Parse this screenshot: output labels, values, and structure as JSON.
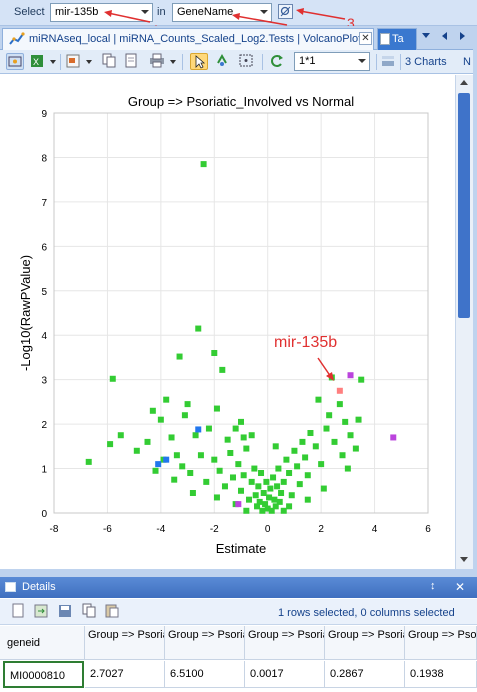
{
  "select_bar": {
    "select_label": "Select",
    "select_value": "mir-135b",
    "in_label": "in",
    "in_value": "GeneName",
    "annotations": [
      "1",
      "2",
      "3"
    ]
  },
  "tabs": {
    "active_tab": "miRNAseq_local | miRNA_Counts_Scaled_Log2.Tests | VolcanoPlot",
    "second_tab": "Ta"
  },
  "toolbar": {
    "scale_value": "1*1",
    "charts_label": "3 Charts",
    "overflow_label": "N"
  },
  "colors": {
    "point_default": "#33cc33",
    "point_selected": "#ff7f7f",
    "point_purple": "#bb44dd",
    "point_blue": "#2277ee",
    "annotation_red": "#e03030"
  },
  "chart_data": {
    "type": "scatter",
    "title": "Group => Psoriatic_Involved vs Normal",
    "xlabel": "Estimate",
    "ylabel": "-Log10(RawPValue)",
    "xlim": [
      -8,
      6
    ],
    "ylim": [
      0,
      9
    ],
    "xticks": [
      "-8",
      "-6",
      "-4",
      "-2",
      "0",
      "2",
      "4",
      "6"
    ],
    "yticks": [
      "0",
      "1",
      "2",
      "3",
      "4",
      "5",
      "6",
      "7",
      "8",
      "9"
    ],
    "grid": true,
    "annotation_label": "mir-135b",
    "series": [
      {
        "color_key": "point_default",
        "points": [
          [
            -2.4,
            7.85
          ],
          [
            -2.6,
            4.15
          ],
          [
            -3.3,
            3.52
          ],
          [
            -5.8,
            3.02
          ],
          [
            -2.0,
            3.6
          ],
          [
            -1.7,
            3.22
          ],
          [
            -3.8,
            2.55
          ],
          [
            -3.0,
            2.45
          ],
          [
            -4.3,
            2.3
          ],
          [
            -4.0,
            2.1
          ],
          [
            -3.1,
            2.2
          ],
          [
            -1.9,
            2.35
          ],
          [
            -5.5,
            1.75
          ],
          [
            -5.9,
            1.55
          ],
          [
            -6.7,
            1.15
          ],
          [
            -4.9,
            1.4
          ],
          [
            -4.5,
            1.6
          ],
          [
            -3.6,
            1.7
          ],
          [
            -3.4,
            1.3
          ],
          [
            -2.7,
            1.75
          ],
          [
            -2.2,
            1.9
          ],
          [
            -1.5,
            1.65
          ],
          [
            -1.2,
            1.9
          ],
          [
            -0.9,
            1.7
          ],
          [
            -3.9,
            1.2
          ],
          [
            -3.2,
            1.05
          ],
          [
            -2.9,
            0.9
          ],
          [
            -2.5,
            1.3
          ],
          [
            -2.3,
            0.7
          ],
          [
            -2.0,
            1.2
          ],
          [
            -1.8,
            0.95
          ],
          [
            -1.6,
            0.6
          ],
          [
            -1.4,
            1.35
          ],
          [
            -1.3,
            0.8
          ],
          [
            -1.1,
            1.1
          ],
          [
            -1.0,
            0.5
          ],
          [
            -0.9,
            0.85
          ],
          [
            -0.8,
            1.45
          ],
          [
            -0.7,
            0.3
          ],
          [
            -0.6,
            0.7
          ],
          [
            -0.5,
            1.0
          ],
          [
            -0.45,
            0.4
          ],
          [
            -0.4,
            0.15
          ],
          [
            -0.35,
            0.6
          ],
          [
            -0.3,
            0.25
          ],
          [
            -0.25,
            0.9
          ],
          [
            -0.2,
            0.05
          ],
          [
            -0.15,
            0.45
          ],
          [
            -0.1,
            0.2
          ],
          [
            -0.05,
            0.7
          ],
          [
            0.0,
            0.1
          ],
          [
            0.05,
            0.35
          ],
          [
            0.1,
            0.55
          ],
          [
            0.15,
            0.05
          ],
          [
            0.2,
            0.8
          ],
          [
            0.25,
            0.3
          ],
          [
            0.3,
            0.15
          ],
          [
            0.35,
            0.6
          ],
          [
            0.4,
            1.0
          ],
          [
            0.45,
            0.25
          ],
          [
            0.5,
            0.45
          ],
          [
            0.6,
            0.7
          ],
          [
            0.7,
            1.2
          ],
          [
            0.8,
            0.9
          ],
          [
            0.9,
            0.4
          ],
          [
            1.0,
            1.4
          ],
          [
            1.1,
            1.05
          ],
          [
            1.2,
            0.65
          ],
          [
            1.3,
            1.6
          ],
          [
            1.4,
            1.25
          ],
          [
            1.5,
            0.85
          ],
          [
            1.6,
            1.8
          ],
          [
            1.8,
            1.5
          ],
          [
            2.0,
            1.1
          ],
          [
            2.2,
            1.9
          ],
          [
            2.3,
            2.2
          ],
          [
            2.5,
            1.6
          ],
          [
            2.7,
            2.45
          ],
          [
            2.8,
            1.3
          ],
          [
            2.9,
            2.05
          ],
          [
            3.1,
            1.75
          ],
          [
            3.0,
            1.0
          ],
          [
            3.3,
            1.45
          ],
          [
            3.4,
            2.1
          ],
          [
            3.5,
            3.0
          ],
          [
            2.4,
            3.05
          ],
          [
            -1.0,
            2.05
          ],
          [
            -0.6,
            1.75
          ],
          [
            0.3,
            1.5
          ],
          [
            1.9,
            2.55
          ],
          [
            -3.5,
            0.75
          ],
          [
            -4.2,
            0.95
          ],
          [
            -2.8,
            0.45
          ],
          [
            -1.9,
            0.35
          ],
          [
            -1.2,
            0.2
          ],
          [
            0.8,
            0.15
          ],
          [
            1.5,
            0.3
          ],
          [
            2.1,
            0.55
          ],
          [
            -0.8,
            0.05
          ],
          [
            0.6,
            0.05
          ]
        ]
      },
      {
        "color_key": "point_selected",
        "points": [
          [
            2.7,
            2.75
          ]
        ]
      },
      {
        "color_key": "point_purple",
        "points": [
          [
            3.1,
            3.1
          ],
          [
            4.7,
            1.7
          ],
          [
            -1.1,
            0.2
          ]
        ]
      },
      {
        "color_key": "point_blue",
        "points": [
          [
            -4.1,
            1.1
          ],
          [
            -2.6,
            1.88
          ],
          [
            -3.8,
            1.2
          ]
        ]
      }
    ]
  },
  "details": {
    "title": "Details",
    "pin_label": "↕",
    "close_label": "✕",
    "selection_status": "1 rows selected, 0 columns selected",
    "columns": [
      "geneid",
      "Group => Psoriatic_Inv...",
      "Group => Psoriatic_Inv...",
      "Group => Psoriatic_Inv...",
      "Group => Psoriatic_Inv...",
      "Group => Psoriatic_Un..."
    ],
    "rows": [
      [
        "MI0000810",
        "2.7027",
        "6.5100",
        "0.0017",
        "0.2867",
        "0.1938"
      ]
    ]
  }
}
